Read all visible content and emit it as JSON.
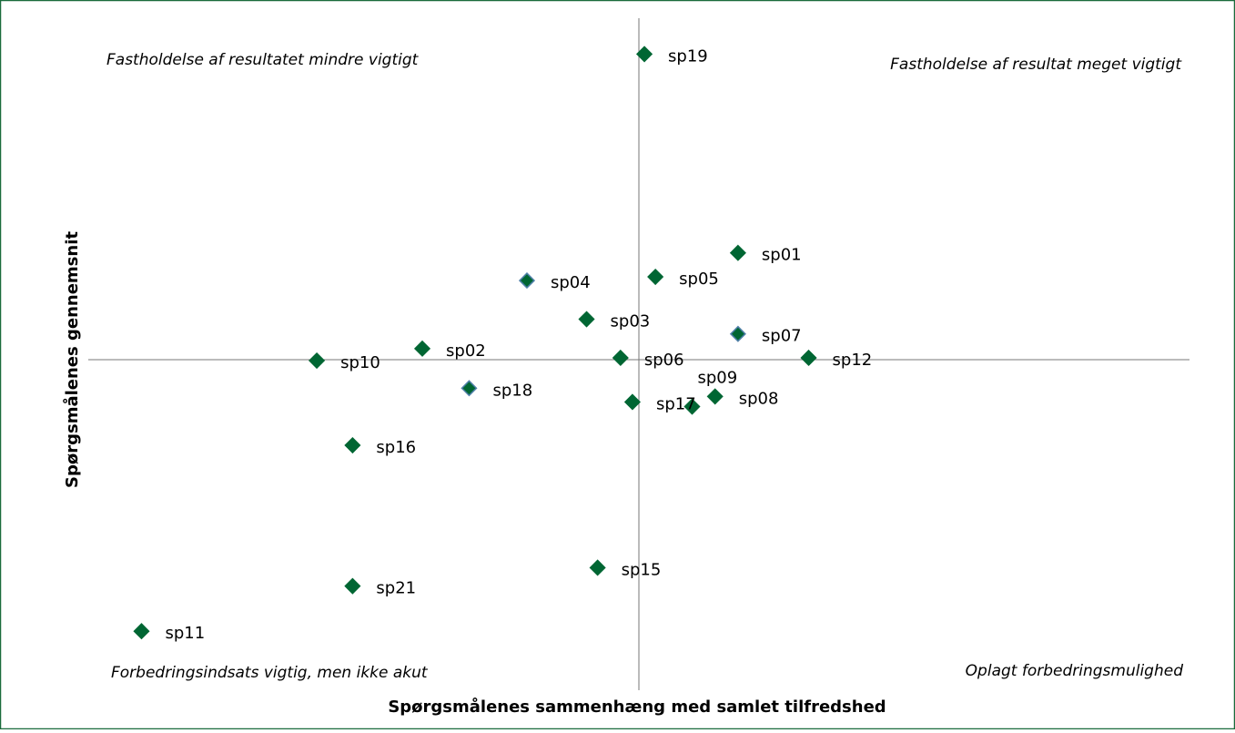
{
  "chart_data": {
    "type": "scatter",
    "x_label": "Spørgsmålenes sammenhæng med samlet tilfredshed",
    "y_label": "Spørgsmålenes gennemsnit",
    "annotations": {
      "top_left": "Fastholdelse af resultatet mindre vigtigt",
      "top_right": "Fastholdelse af resultat meget vigtigt",
      "bottom_left": "Forbedringsindsats vigtig, men ikke akut",
      "bottom_right": "Oplagt forbedringsmulighed"
    },
    "labels": [
      "sp19",
      "sp01",
      "sp05",
      "sp04",
      "sp03",
      "sp07",
      "sp02",
      "sp10",
      "sp06",
      "sp12",
      "sp18",
      "sp09",
      "sp08",
      "sp17",
      "sp16",
      "sp15",
      "sp21",
      "sp11"
    ],
    "x": [
      0.6,
      10.8,
      1.8,
      -12.2,
      -5.7,
      10.8,
      -23.6,
      -35.1,
      -2.0,
      18.5,
      -18.5,
      5.8,
      8.3,
      -0.7,
      -31.2,
      -4.5,
      -31.2,
      -54.2
    ],
    "y": [
      33.2,
      11.6,
      9.0,
      8.6,
      4.4,
      2.8,
      1.2,
      -0.1,
      0.2,
      0.2,
      -3.1,
      -5.1,
      -4.0,
      -4.6,
      -9.3,
      -22.6,
      -24.6,
      -29.5
    ],
    "color": "#006633",
    "edge_colors": [
      "#006633",
      "#006633",
      "#006633",
      "#4f7fa8",
      "#006633",
      "#4f7fa8",
      "#006633",
      "#006633",
      "#006633",
      "#006633",
      "#4f7fa8",
      "#006633",
      "#006633",
      "#006633",
      "#006633",
      "#006633",
      "#006633",
      "#006633"
    ],
    "xlim": [
      -60,
      60
    ],
    "ylim": [
      -37,
      37
    ],
    "xticks": [
      0
    ],
    "yticks": [
      0
    ]
  }
}
